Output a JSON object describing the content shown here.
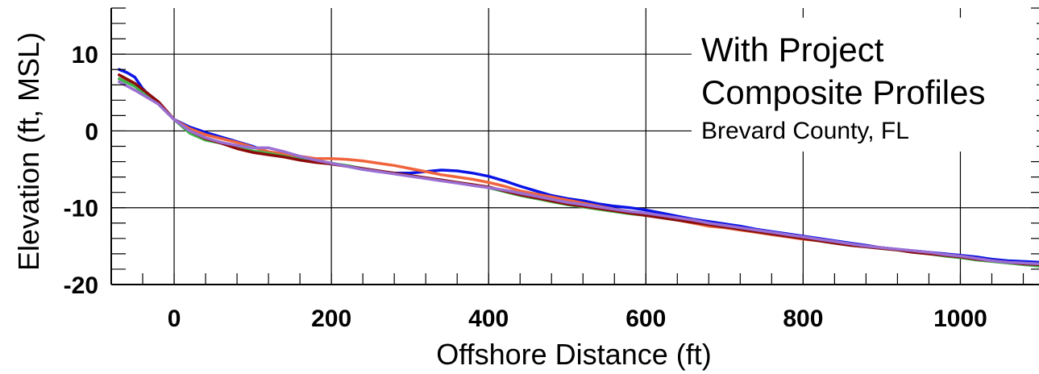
{
  "chart_data": {
    "type": "line",
    "title": "With Project",
    "subtitle": "Composite Profiles",
    "location": "Brevard County, FL",
    "xlabel": "Offshore Distance (ft)",
    "ylabel": "Elevation (ft, MSL)",
    "xlim": [
      -80,
      1100
    ],
    "ylim": [
      -20,
      16
    ],
    "xticks": [
      0,
      200,
      400,
      600,
      800,
      1000
    ],
    "yticks": [
      10,
      0,
      -10,
      -20
    ],
    "x_minor_step": 40,
    "y_minor_step": 2,
    "grid": true,
    "series": [
      {
        "color": "#0a14e6",
        "x": [
          -70,
          -60,
          -50,
          -40,
          -20,
          0,
          20,
          40,
          60,
          80,
          100,
          120,
          140,
          160,
          180,
          200,
          220,
          240,
          260,
          280,
          300,
          320,
          340,
          360,
          380,
          400,
          420,
          440,
          460,
          480,
          500,
          520,
          540,
          560,
          580,
          600,
          620,
          640,
          660,
          680,
          700,
          720,
          740,
          760,
          780,
          800,
          820,
          840,
          860,
          880,
          900,
          920,
          940,
          960,
          980,
          1000,
          1020,
          1040,
          1060,
          1080,
          1100
        ],
        "y": [
          8,
          7.6,
          7,
          5.5,
          3.5,
          1.5,
          0.5,
          -0.2,
          -0.8,
          -1.4,
          -2,
          -2.8,
          -3.3,
          -3.6,
          -4,
          -4.3,
          -4.6,
          -5,
          -5.3,
          -5.5,
          -5.5,
          -5.3,
          -5.1,
          -5.2,
          -5.5,
          -5.9,
          -6.5,
          -7.2,
          -7.8,
          -8.4,
          -8.8,
          -9.1,
          -9.5,
          -9.8,
          -10,
          -10.3,
          -10.7,
          -11.1,
          -11.5,
          -11.8,
          -12.1,
          -12.4,
          -12.8,
          -13.1,
          -13.4,
          -13.7,
          -14,
          -14.3,
          -14.6,
          -14.9,
          -15.2,
          -15.4,
          -15.6,
          -15.8,
          -16,
          -16.2,
          -16.4,
          -16.7,
          -16.9,
          -17,
          -17.1
        ]
      },
      {
        "color": "#f0643c",
        "x": [
          -70,
          -50,
          -20,
          0,
          20,
          40,
          60,
          80,
          100,
          120,
          140,
          160,
          180,
          200,
          220,
          240,
          260,
          280,
          300,
          320,
          340,
          360,
          380,
          400,
          420,
          440,
          460,
          480,
          500,
          520,
          540,
          560,
          580,
          600,
          620,
          640,
          660,
          680,
          700,
          720,
          740,
          760,
          780,
          800,
          820,
          840,
          860,
          880,
          900,
          920,
          940,
          960,
          980,
          1000,
          1020,
          1040,
          1060,
          1080,
          1100
        ],
        "y": [
          7.3,
          6,
          3.5,
          1.5,
          0.3,
          -0.5,
          -1,
          -1.5,
          -2.1,
          -2.7,
          -3,
          -3.3,
          -3.6,
          -3.6,
          -3.7,
          -3.9,
          -4.2,
          -4.5,
          -4.9,
          -5.3,
          -5.7,
          -6,
          -6.3,
          -6.7,
          -7.2,
          -7.8,
          -8.2,
          -8.6,
          -9,
          -9.4,
          -9.8,
          -10.2,
          -10.5,
          -10.8,
          -11.2,
          -11.6,
          -12,
          -12.4,
          -12.6,
          -12.9,
          -13.2,
          -13.5,
          -13.8,
          -14.1,
          -14.3,
          -14.5,
          -14.8,
          -15,
          -15.2,
          -15.5,
          -15.7,
          -15.9,
          -16.1,
          -16.3,
          -16.6,
          -16.9,
          -17.2,
          -17.3,
          -17.4
        ]
      },
      {
        "color": "#3cb44b",
        "x": [
          -70,
          -50,
          -20,
          0,
          20,
          40,
          60,
          80,
          100,
          120,
          140,
          160,
          180,
          200,
          220,
          240,
          260,
          280,
          300,
          320,
          340,
          360,
          380,
          400,
          420,
          440,
          460,
          480,
          500,
          520,
          540,
          560,
          580,
          600,
          620,
          640,
          660,
          680,
          700,
          720,
          740,
          760,
          780,
          800,
          820,
          840,
          860,
          880,
          900,
          920,
          940,
          960,
          980,
          1000,
          1020,
          1040,
          1060,
          1080,
          1100
        ],
        "y": [
          6.8,
          5.8,
          3.5,
          1.5,
          -0.3,
          -1.2,
          -1.6,
          -2.2,
          -2.6,
          -2.9,
          -3.3,
          -3.7,
          -4,
          -4.2,
          -4.5,
          -4.9,
          -5.2,
          -5.5,
          -5.8,
          -6.1,
          -6.4,
          -6.7,
          -7,
          -7.4,
          -7.9,
          -8.4,
          -8.8,
          -9.2,
          -9.6,
          -9.9,
          -10.2,
          -10.5,
          -10.8,
          -11,
          -11.3,
          -11.6,
          -11.9,
          -12.2,
          -12.5,
          -12.8,
          -13.1,
          -13.4,
          -13.7,
          -14,
          -14.3,
          -14.6,
          -14.9,
          -15.1,
          -15.3,
          -15.5,
          -15.8,
          -16,
          -16.3,
          -16.5,
          -16.8,
          -17,
          -17.2,
          -17.4,
          -17.6
        ]
      },
      {
        "color": "#8c0a0a",
        "x": [
          -70,
          -50,
          -20,
          0,
          20,
          40,
          60,
          80,
          100,
          120,
          140,
          160,
          180,
          200,
          220,
          240,
          260,
          280,
          300,
          320,
          340,
          360,
          380,
          400,
          420,
          440,
          460,
          480,
          500,
          520,
          540,
          560,
          580,
          600,
          620,
          640,
          660,
          680,
          700,
          720,
          740,
          760,
          780,
          800,
          820,
          840,
          860,
          880,
          900,
          920,
          940,
          960,
          980,
          1000,
          1020,
          1040,
          1060,
          1080,
          1100
        ],
        "y": [
          7.3,
          6.2,
          3.8,
          1.5,
          0,
          -1,
          -1.6,
          -2.3,
          -2.8,
          -3.1,
          -3.4,
          -3.8,
          -4.1,
          -4.3,
          -4.6,
          -4.9,
          -5.2,
          -5.5,
          -5.8,
          -6.1,
          -6.4,
          -6.7,
          -7,
          -7.3,
          -7.8,
          -8.3,
          -8.7,
          -9.1,
          -9.5,
          -9.8,
          -10.1,
          -10.4,
          -10.7,
          -11,
          -11.3,
          -11.6,
          -11.9,
          -12.2,
          -12.5,
          -12.8,
          -13.1,
          -13.4,
          -13.7,
          -14,
          -14.3,
          -14.6,
          -14.9,
          -15.1,
          -15.3,
          -15.5,
          -15.8,
          -16,
          -16.2,
          -16.4,
          -16.7,
          -16.9,
          -17.1,
          -17.3,
          -17.4
        ]
      },
      {
        "color": "#9b6ed2",
        "x": [
          -70,
          -50,
          -20,
          0,
          20,
          40,
          60,
          80,
          100,
          120,
          140,
          160,
          180,
          200,
          220,
          240,
          260,
          280,
          300,
          320,
          340,
          360,
          380,
          400,
          420,
          440,
          460,
          480,
          500,
          520,
          540,
          560,
          580,
          600,
          620,
          640,
          660,
          680,
          700,
          720,
          740,
          760,
          780,
          800,
          820,
          840,
          860,
          880,
          900,
          920,
          940,
          960,
          980,
          1000,
          1020,
          1040,
          1060,
          1080,
          1100
        ],
        "y": [
          6.4,
          5.3,
          3.5,
          1.5,
          0,
          -0.9,
          -1.5,
          -1.9,
          -2.2,
          -2.2,
          -2.7,
          -3.3,
          -3.8,
          -4.2,
          -4.6,
          -5,
          -5.3,
          -5.6,
          -5.9,
          -6.2,
          -6.5,
          -6.8,
          -7.1,
          -7.4,
          -7.7,
          -8.1,
          -8.5,
          -8.9,
          -9.3,
          -9.6,
          -9.9,
          -10.2,
          -10.5,
          -10.7,
          -11,
          -11.3,
          -11.6,
          -12,
          -12.3,
          -12.6,
          -12.9,
          -13.2,
          -13.5,
          -13.8,
          -14.1,
          -14.4,
          -14.7,
          -15,
          -15.2,
          -15.4,
          -15.6,
          -15.8,
          -16.1,
          -16.3,
          -16.6,
          -16.9,
          -17.1,
          -17.2,
          -17.3
        ]
      }
    ]
  }
}
